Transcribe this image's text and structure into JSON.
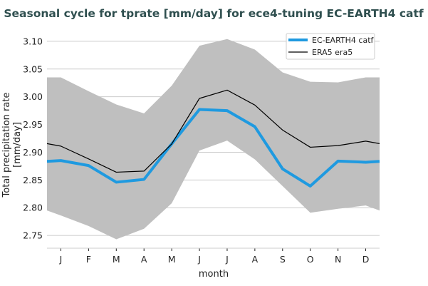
{
  "chart_data": {
    "type": "line",
    "title": "Seasonal cycle for tprate [mm/day] for ece4-tuning EC-EARTH4 catf",
    "xlabel": "month",
    "ylabel": [
      "Total precipitation rate",
      "[mm/day]"
    ],
    "categories": [
      "J",
      "F",
      "M",
      "A",
      "M",
      "J",
      "J",
      "A",
      "S",
      "O",
      "N",
      "D"
    ],
    "ylim": [
      2.727,
      3.123
    ],
    "yticks": [
      "2.75",
      "2.80",
      "2.85",
      "2.90",
      "2.95",
      "3.00",
      "3.05",
      "3.10"
    ],
    "grid": true,
    "legend_position": "top-right",
    "series": [
      {
        "name": "EC-EARTH4 catf",
        "color": "#1f9ae0",
        "values": [
          2.885,
          2.876,
          2.846,
          2.851,
          2.915,
          2.977,
          2.975,
          2.946,
          2.87,
          2.839,
          2.884,
          2.882
        ]
      },
      {
        "name": "ERA5 era5",
        "color": "#000000",
        "values": [
          2.911,
          2.888,
          2.864,
          2.866,
          2.915,
          2.997,
          3.012,
          2.985,
          2.94,
          2.909,
          2.912,
          2.92
        ]
      }
    ],
    "band": {
      "color": "#bfbfbf",
      "upper": [
        3.035,
        3.01,
        2.986,
        2.97,
        3.02,
        3.092,
        3.104,
        3.085,
        3.044,
        3.027,
        3.026,
        3.035
      ],
      "lower": [
        2.786,
        2.767,
        2.743,
        2.762,
        2.808,
        2.903,
        2.921,
        2.887,
        2.839,
        2.791,
        2.798,
        2.804
      ]
    }
  }
}
